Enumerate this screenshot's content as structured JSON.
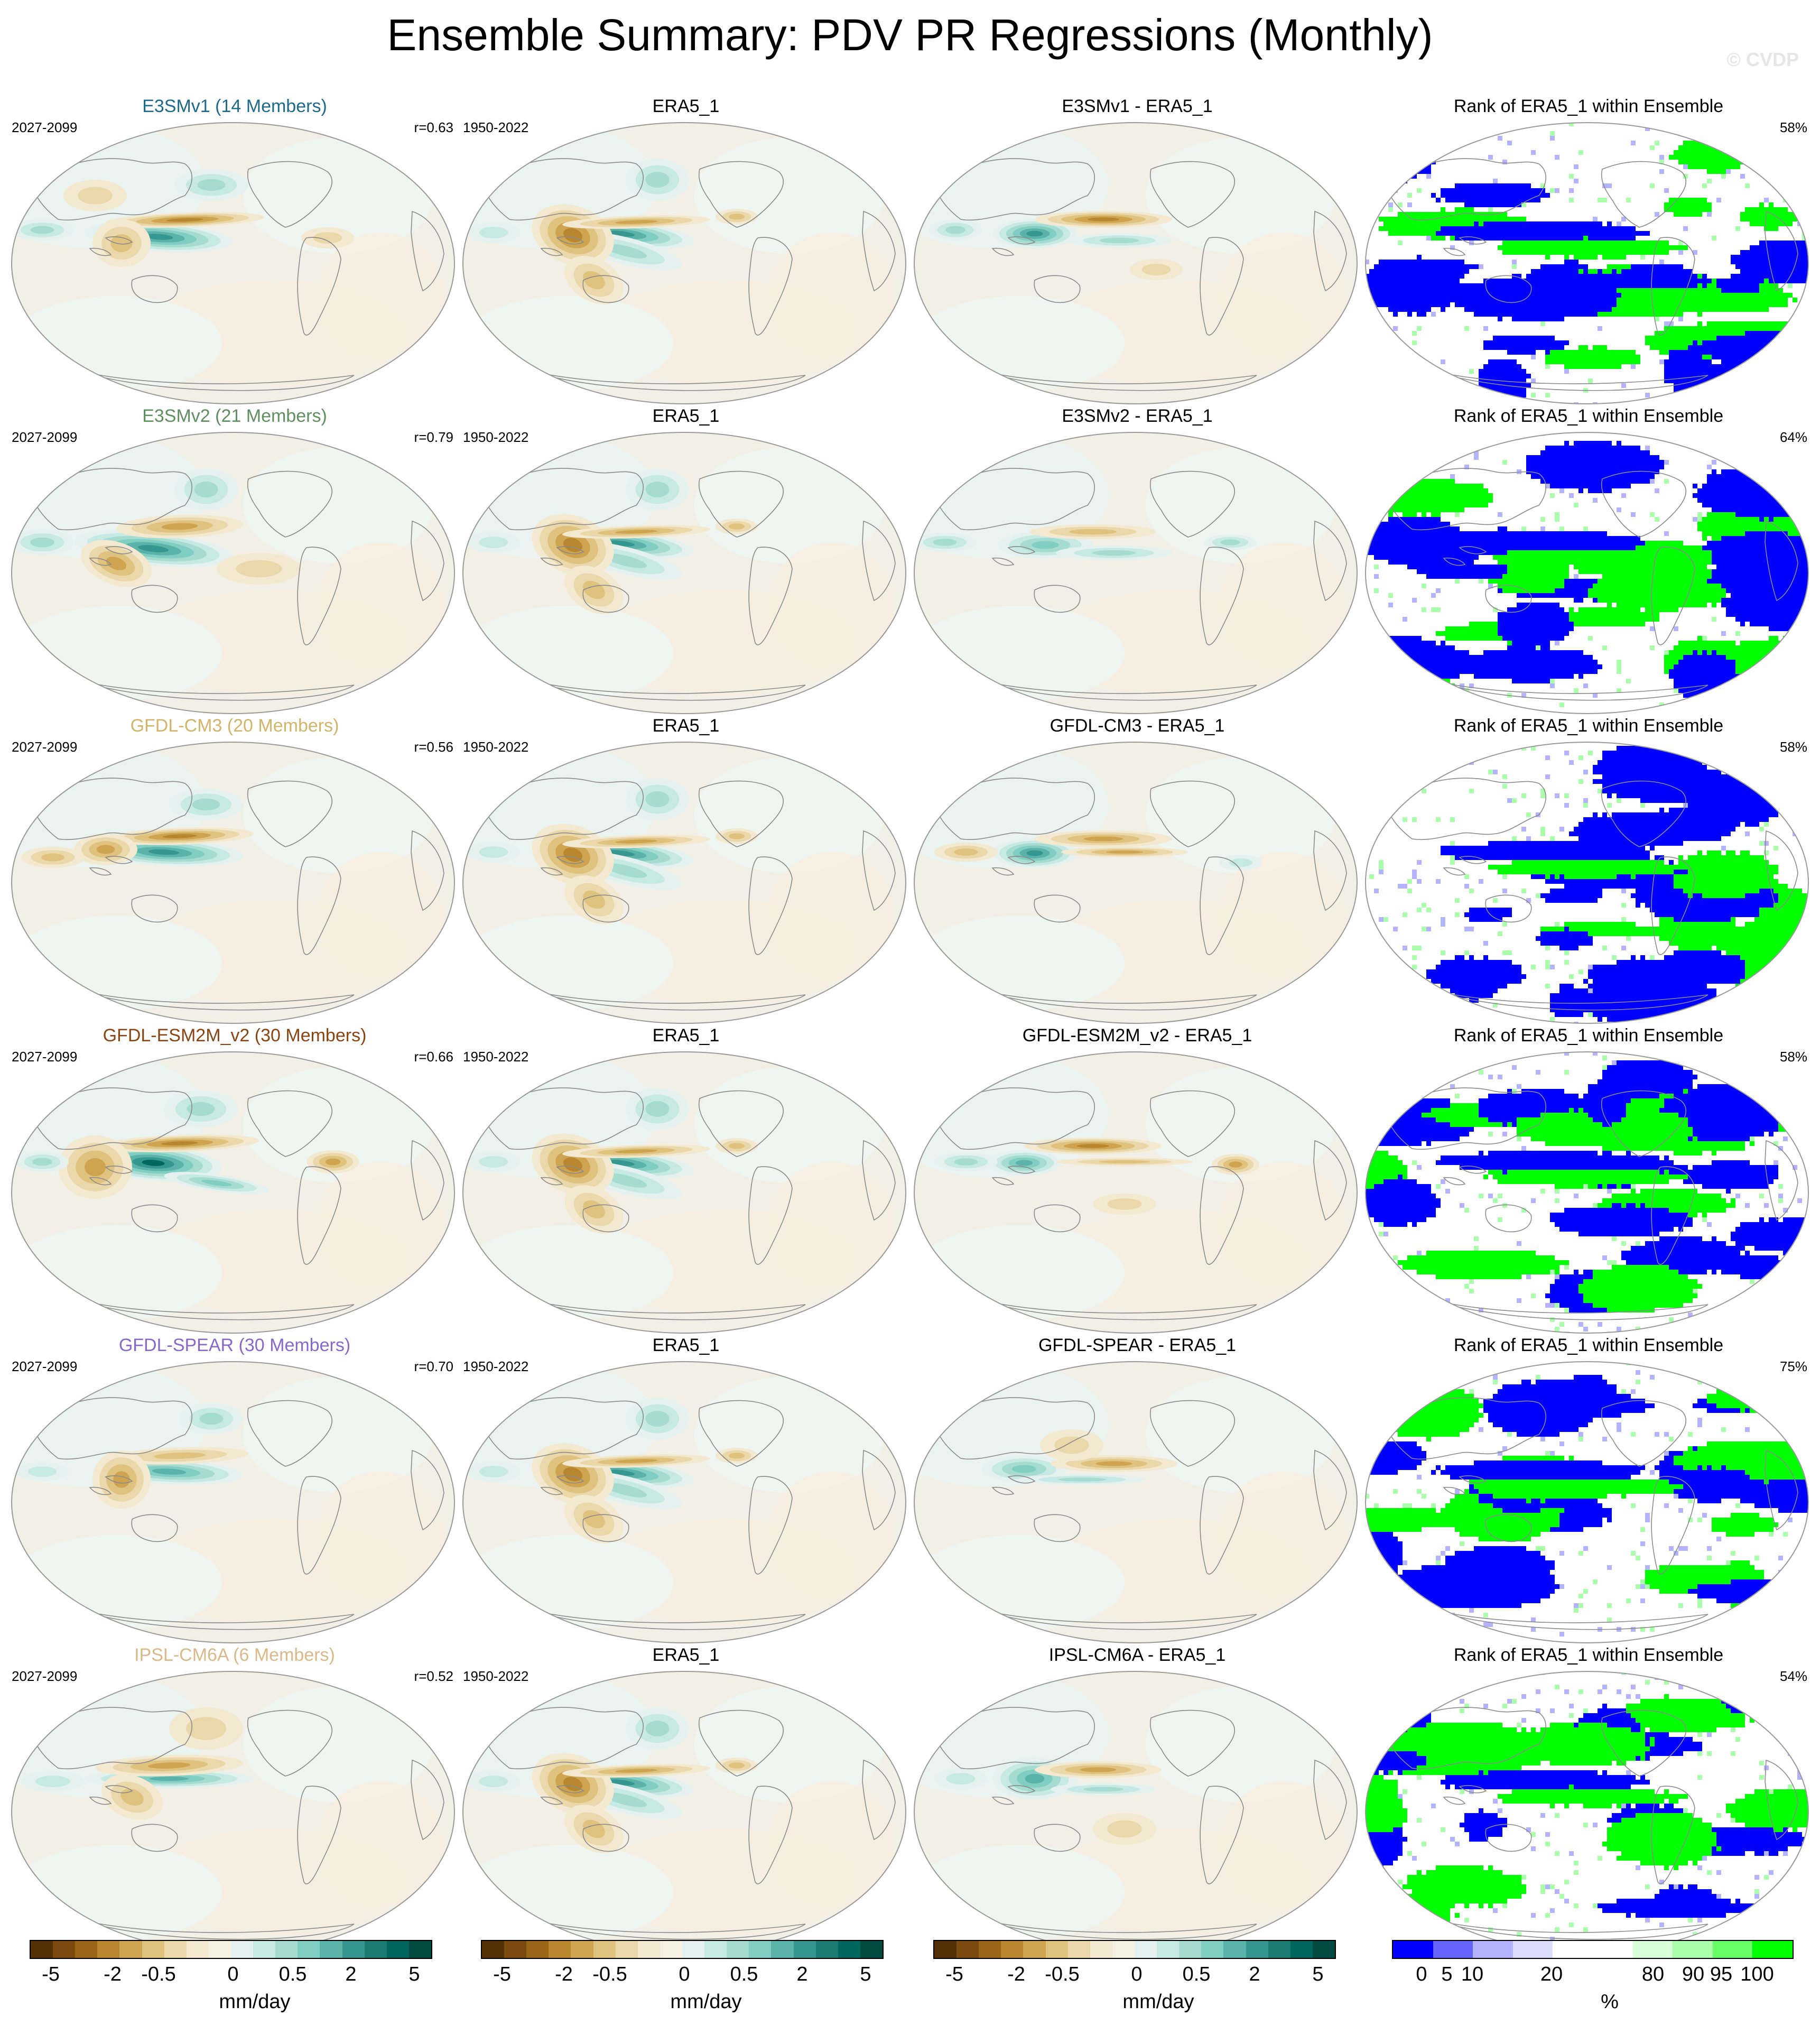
{
  "page": {
    "title": "Ensemble Summary: PDV PR Regressions (Monthly)",
    "watermark": "© CVDP"
  },
  "rows": [
    {
      "model_title": "E3SMv1 (14 Members)",
      "model_color": "#1d6a8c",
      "model_period": "2027-2099",
      "corr": "r=0.63",
      "obs_title": "ERA5_1",
      "obs_period": "1950-2022",
      "diff_title": "E3SMv1 - ERA5_1",
      "rank_title": "Rank of ERA5_1 within Ensemble",
      "rank_pct": "58%",
      "model_pattern": "m1",
      "diff_pattern": "d1",
      "rank_seed": 11,
      "rank_density": 0.58
    },
    {
      "model_title": "E3SMv2 (21 Members)",
      "model_color": "#5f8f5f",
      "model_period": "2027-2099",
      "corr": "r=0.79",
      "obs_title": "ERA5_1",
      "obs_period": "1950-2022",
      "diff_title": "E3SMv2 - ERA5_1",
      "rank_title": "Rank of ERA5_1 within Ensemble",
      "rank_pct": "64%",
      "model_pattern": "m2",
      "diff_pattern": "d2",
      "rank_seed": 23,
      "rank_density": 0.44
    },
    {
      "model_title": "GFDL-CM3 (20 Members)",
      "model_color": "#d2b46a",
      "model_period": "2027-2099",
      "corr": "r=0.56",
      "obs_title": "ERA5_1",
      "obs_period": "1950-2022",
      "diff_title": "GFDL-CM3 - ERA5_1",
      "rank_title": "Rank of ERA5_1 within Ensemble",
      "rank_pct": "58%",
      "model_pattern": "m3",
      "diff_pattern": "d3",
      "rank_seed": 37,
      "rank_density": 0.62
    },
    {
      "model_title": "GFDL-ESM2M_v2 (30 Members)",
      "model_color": "#8b4513",
      "model_period": "2027-2099",
      "corr": "r=0.66",
      "obs_title": "ERA5_1",
      "obs_period": "1950-2022",
      "diff_title": "GFDL-ESM2M_v2 - ERA5_1",
      "rank_title": "Rank of ERA5_1 within Ensemble",
      "rank_pct": "58%",
      "model_pattern": "m4",
      "diff_pattern": "d4",
      "rank_seed": 41,
      "rank_density": 0.6
    },
    {
      "model_title": "GFDL-SPEAR (30 Members)",
      "model_color": "#8868c8",
      "model_period": "2027-2099",
      "corr": "r=0.70",
      "obs_title": "ERA5_1",
      "obs_period": "1950-2022",
      "diff_title": "GFDL-SPEAR - ERA5_1",
      "rank_title": "Rank of ERA5_1 within Ensemble",
      "rank_pct": "75%",
      "model_pattern": "m5",
      "diff_pattern": "d5",
      "rank_seed": 53,
      "rank_density": 0.42
    },
    {
      "model_title": "IPSL-CM6A (6 Members)",
      "model_color": "#dbb88a",
      "model_period": "2027-2099",
      "corr": "r=0.52",
      "obs_title": "ERA5_1",
      "obs_period": "1950-2022",
      "diff_title": "IPSL-CM6A - ERA5_1",
      "rank_title": "Rank of ERA5_1 within Ensemble",
      "rank_pct": "54%",
      "model_pattern": "m6",
      "diff_pattern": "d6",
      "rank_seed": 67,
      "rank_density": 0.74
    }
  ],
  "colorbars": {
    "regression": {
      "colors": [
        "#543005",
        "#7a4a0f",
        "#996619",
        "#b8862f",
        "#cfa451",
        "#dfc27d",
        "#ead8aa",
        "#f3e9d0",
        "#f5f0e2",
        "#e4f1ef",
        "#c7e9e4",
        "#a6dbd2",
        "#80cdc1",
        "#5ab2a8",
        "#35978f",
        "#1b7b72",
        "#01665e",
        "#004a40"
      ],
      "ticks": [
        "-5",
        "-2",
        "-0.5",
        "0",
        "0.5",
        "2",
        "5"
      ],
      "unit": "mm/day"
    },
    "rank": {
      "colors": [
        "#0000ff",
        "#6666ff",
        "#b3b3ff",
        "#dcdcff",
        "#ffffff",
        "#ffffff",
        "#d8ffd8",
        "#aaffaa",
        "#66ff66",
        "#00ff00"
      ],
      "ticks": [
        "0",
        "5",
        "10",
        "20",
        "80",
        "90",
        "95",
        "100"
      ],
      "unit": "%"
    }
  }
}
